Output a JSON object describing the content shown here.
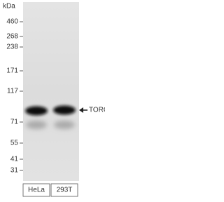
{
  "kda_label": "kDa",
  "markers": [
    "460",
    "268",
    "238",
    "171",
    "117",
    "71",
    "55",
    "41",
    "31"
  ],
  "lanes": [
    "HeLa",
    "293T"
  ],
  "band_label": "TORC1"
}
